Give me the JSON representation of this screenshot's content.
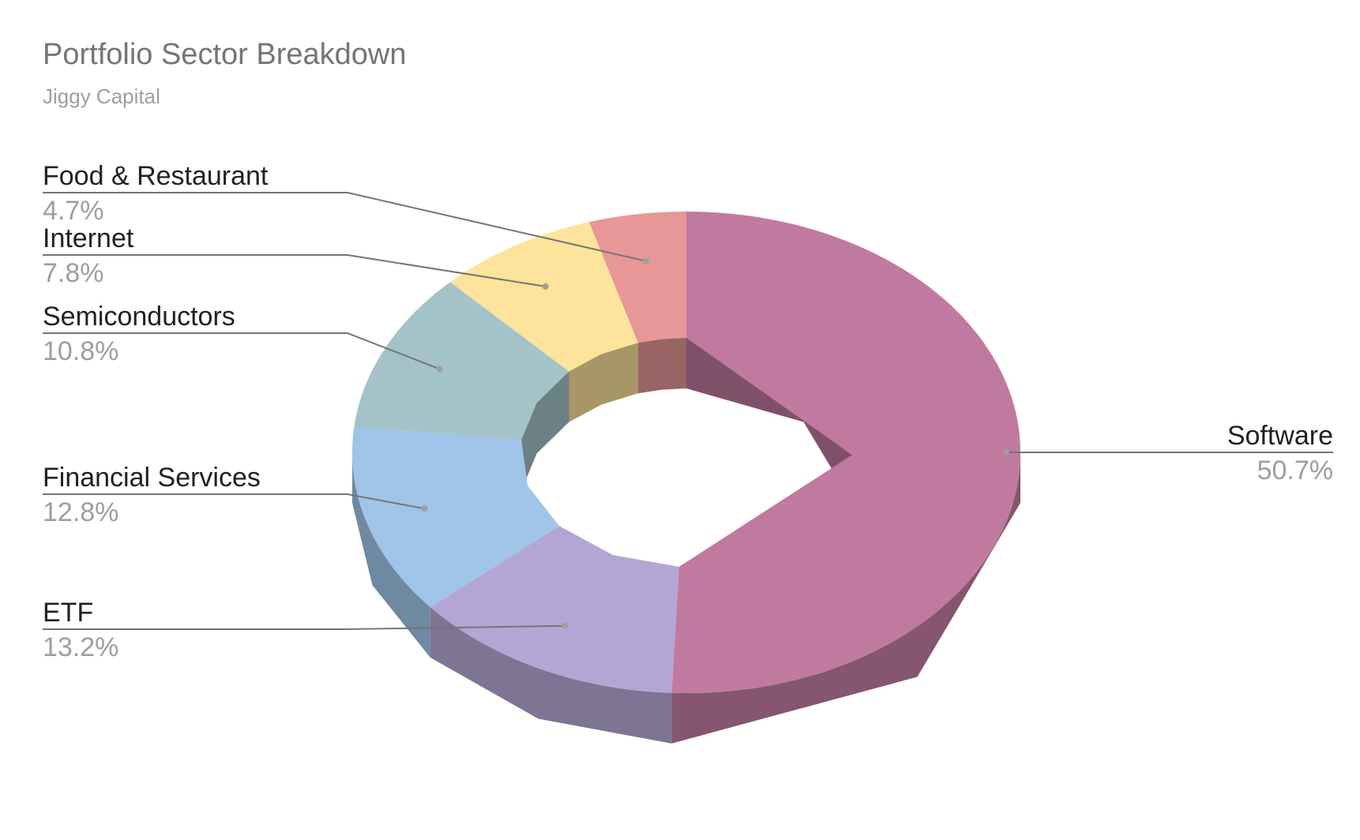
{
  "chart_data": {
    "type": "pie",
    "style": "3d-donut",
    "title": "Portfolio Sector Breakdown",
    "subtitle": "Jiggy Capital",
    "slices": [
      {
        "label": "Software",
        "value": 50.7,
        "display": "50.7%",
        "color": "#c07a9f",
        "label_side": "right"
      },
      {
        "label": "ETF",
        "value": 13.2,
        "display": "13.2%",
        "color": "#b4a6d4",
        "label_side": "left"
      },
      {
        "label": "Financial Services",
        "value": 12.8,
        "display": "12.8%",
        "color": "#a0c4e8",
        "label_side": "left"
      },
      {
        "label": "Semiconductors",
        "value": 10.8,
        "display": "10.8%",
        "color": "#a3c3c8",
        "label_side": "left"
      },
      {
        "label": "Internet",
        "value": 7.8,
        "display": "7.8%",
        "color": "#fde39b",
        "label_side": "left"
      },
      {
        "label": "Food & Restaurant",
        "value": 4.7,
        "display": "4.7%",
        "color": "#e89797",
        "label_side": "left"
      }
    ],
    "legend": "none",
    "labels": "outside-with-leader-lines"
  }
}
